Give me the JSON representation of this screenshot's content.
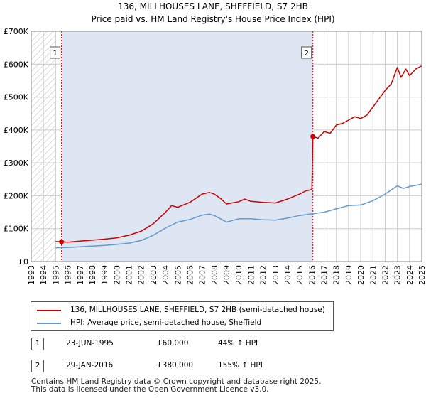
{
  "title_line1": "136, MILLHOUSES LANE, SHEFFIELD, S7 2HB",
  "title_line2": "Price paid vs. HM Land Registry's House Price Index (HPI)",
  "colors": {
    "red": "#cc0000",
    "blue": "#6699cc",
    "grid": "#cccccc",
    "shade": "#dde6f2",
    "hatch": "#bbbbbb"
  },
  "legend": {
    "red_label": "136, MILLHOUSES LANE, SHEFFIELD, S7 2HB (semi-detached house)",
    "blue_label": "HPI: Average price, semi-detached house, Sheffield"
  },
  "sales": [
    {
      "badge": "1",
      "date": "23-JUN-1995",
      "price": "£60,000",
      "hpi": "44% ↑ HPI"
    },
    {
      "badge": "2",
      "date": "29-JAN-2016",
      "price": "£380,000",
      "hpi": "155% ↑ HPI"
    }
  ],
  "footer_line1": "Contains HM Land Registry data © Crown copyright and database right 2025.",
  "footer_line2": "This data is licensed under the Open Government Licence v3.0.",
  "chart_data": {
    "type": "line",
    "title": "Price paid vs. HM Land Registry's House Price Index (HPI)",
    "xlim": [
      1993,
      2025
    ],
    "ylim": [
      0,
      700000
    ],
    "y_ticks": [
      0,
      100000,
      200000,
      300000,
      400000,
      500000,
      600000,
      700000
    ],
    "y_tick_labels": [
      "£0",
      "£100K",
      "£200K",
      "£300K",
      "£400K",
      "£500K",
      "£600K",
      "£700K"
    ],
    "x_ticks": [
      1993,
      1994,
      1995,
      1996,
      1997,
      1998,
      1999,
      2000,
      2001,
      2002,
      2003,
      2004,
      2005,
      2006,
      2007,
      2008,
      2009,
      2010,
      2011,
      2012,
      2013,
      2014,
      2015,
      2016,
      2017,
      2018,
      2019,
      2020,
      2021,
      2022,
      2023,
      2024,
      2025
    ],
    "x_tick_labels": [
      "1993",
      "1994",
      "1995",
      "1996",
      "1997",
      "1998",
      "1999",
      "2000",
      "2001",
      "2002",
      "2003",
      "2004",
      "2005",
      "2006",
      "2007",
      "2008",
      "2009",
      "2010",
      "2011",
      "2012",
      "2013",
      "2014",
      "2015",
      "2016",
      "2017",
      "2018",
      "2019",
      "2020",
      "2021",
      "2022",
      "2023",
      "2024",
      "2025"
    ],
    "hatched_before": 1995.0,
    "shaded_range": [
      1995.48,
      2016.08
    ],
    "markers": [
      {
        "label": "1",
        "x": 1995.48,
        "y": 60000
      },
      {
        "label": "2",
        "x": 2016.08,
        "y": 380000
      }
    ],
    "series": [
      {
        "name": "136, MILLHOUSES LANE, SHEFFIELD, S7 2HB (semi-detached house)",
        "color": "#cc0000",
        "points": [
          [
            1995.0,
            61000
          ],
          [
            1995.48,
            60000
          ],
          [
            1996.0,
            59000
          ],
          [
            1997.0,
            62000
          ],
          [
            1998.0,
            65000
          ],
          [
            1999.0,
            68000
          ],
          [
            2000.0,
            72000
          ],
          [
            2001.0,
            80000
          ],
          [
            2002.0,
            92000
          ],
          [
            2003.0,
            115000
          ],
          [
            2004.0,
            150000
          ],
          [
            2004.5,
            170000
          ],
          [
            2005.0,
            165000
          ],
          [
            2006.0,
            180000
          ],
          [
            2007.0,
            205000
          ],
          [
            2007.6,
            210000
          ],
          [
            2008.0,
            205000
          ],
          [
            2008.5,
            192000
          ],
          [
            2009.0,
            175000
          ],
          [
            2010.0,
            182000
          ],
          [
            2010.5,
            190000
          ],
          [
            2011.0,
            183000
          ],
          [
            2012.0,
            180000
          ],
          [
            2013.0,
            178000
          ],
          [
            2014.0,
            190000
          ],
          [
            2015.0,
            205000
          ],
          [
            2015.5,
            215000
          ],
          [
            2015.9,
            218000
          ],
          [
            2016.0,
            220000
          ],
          [
            2016.08,
            380000
          ],
          [
            2016.5,
            375000
          ],
          [
            2017.0,
            395000
          ],
          [
            2017.5,
            390000
          ],
          [
            2018.0,
            415000
          ],
          [
            2018.5,
            420000
          ],
          [
            2019.0,
            430000
          ],
          [
            2019.5,
            440000
          ],
          [
            2020.0,
            435000
          ],
          [
            2020.5,
            445000
          ],
          [
            2021.0,
            470000
          ],
          [
            2021.5,
            495000
          ],
          [
            2022.0,
            520000
          ],
          [
            2022.5,
            540000
          ],
          [
            2023.0,
            590000
          ],
          [
            2023.3,
            560000
          ],
          [
            2023.7,
            585000
          ],
          [
            2024.0,
            565000
          ],
          [
            2024.5,
            585000
          ],
          [
            2025.0,
            595000
          ]
        ]
      },
      {
        "name": "HPI: Average price, semi-detached house, Sheffield",
        "color": "#6699cc",
        "points": [
          [
            1995.0,
            42000
          ],
          [
            1996.0,
            43000
          ],
          [
            1997.0,
            45000
          ],
          [
            1998.0,
            47000
          ],
          [
            1999.0,
            49000
          ],
          [
            2000.0,
            52000
          ],
          [
            2001.0,
            56000
          ],
          [
            2002.0,
            64000
          ],
          [
            2003.0,
            80000
          ],
          [
            2004.0,
            102000
          ],
          [
            2005.0,
            120000
          ],
          [
            2006.0,
            128000
          ],
          [
            2007.0,
            141000
          ],
          [
            2007.6,
            144000
          ],
          [
            2008.0,
            140000
          ],
          [
            2008.5,
            130000
          ],
          [
            2009.0,
            120000
          ],
          [
            2010.0,
            130000
          ],
          [
            2011.0,
            130000
          ],
          [
            2012.0,
            127000
          ],
          [
            2013.0,
            126000
          ],
          [
            2014.0,
            132000
          ],
          [
            2015.0,
            140000
          ],
          [
            2016.0,
            145000
          ],
          [
            2017.0,
            150000
          ],
          [
            2018.0,
            160000
          ],
          [
            2019.0,
            170000
          ],
          [
            2020.0,
            172000
          ],
          [
            2021.0,
            185000
          ],
          [
            2022.0,
            205000
          ],
          [
            2023.0,
            230000
          ],
          [
            2023.5,
            222000
          ],
          [
            2024.0,
            228000
          ],
          [
            2025.0,
            235000
          ]
        ]
      }
    ]
  }
}
